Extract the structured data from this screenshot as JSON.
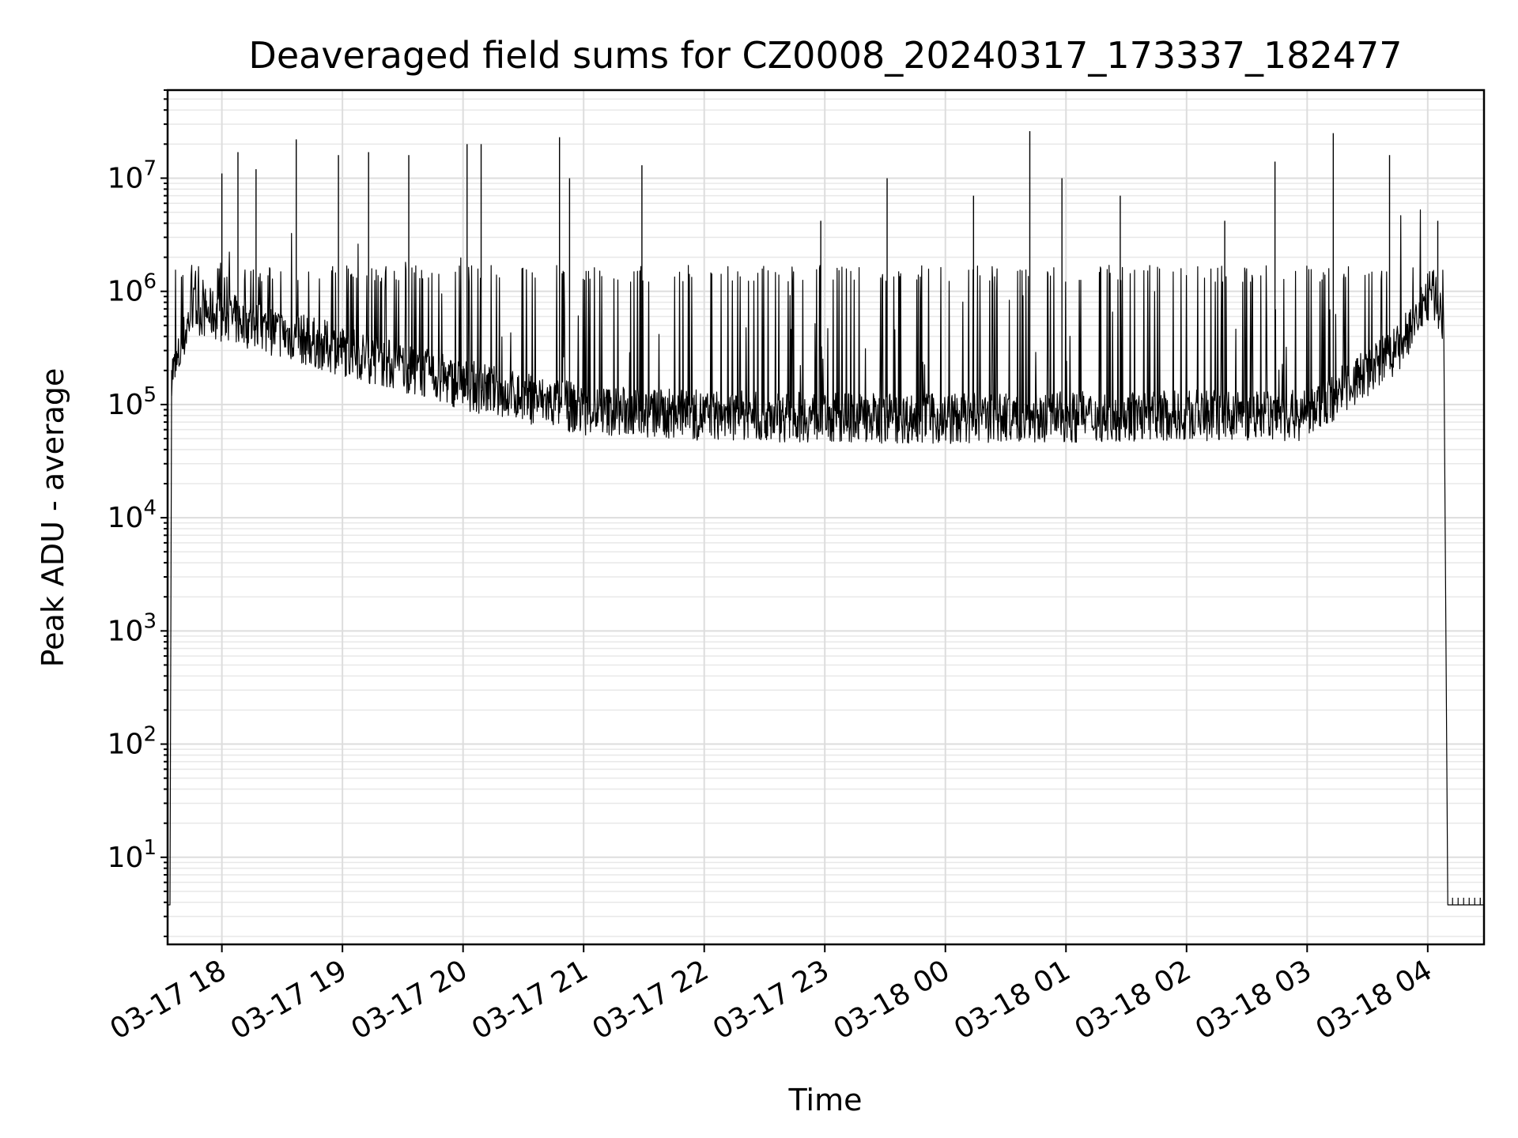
{
  "chart_data": {
    "type": "line",
    "title": "Deaveraged field sums for CZ0008_20240317_173337_182477",
    "xlabel": "Time",
    "ylabel": "Peak ADU - average",
    "yscale": "log",
    "ylim": [
      1.7,
      60000000
    ],
    "xlim": [
      "2024-03-17 17:33",
      "2024-03-18 04:28"
    ],
    "grid": true,
    "line_color": "#000000",
    "x_ticks": [
      "03-17 18",
      "03-17 19",
      "03-17 20",
      "03-17 21",
      "03-17 22",
      "03-17 23",
      "03-18 00",
      "03-18 01",
      "03-18 02",
      "03-18 03",
      "03-18 04"
    ],
    "y_ticks": [
      {
        "base": "10",
        "exp": "1",
        "value": 10
      },
      {
        "base": "10",
        "exp": "2",
        "value": 100
      },
      {
        "base": "10",
        "exp": "3",
        "value": 1000
      },
      {
        "base": "10",
        "exp": "4",
        "value": 10000
      },
      {
        "base": "10",
        "exp": "5",
        "value": 100000
      },
      {
        "base": "10",
        "exp": "6",
        "value": 1000000
      },
      {
        "base": "10",
        "exp": "7",
        "value": 10000000
      }
    ],
    "series": [
      {
        "baseline_profile": [
          {
            "x": "2024-03-17 17:37",
            "y": 200000
          },
          {
            "x": "2024-03-17 17:45",
            "y": 700000
          },
          {
            "x": "2024-03-17 18:00",
            "y": 600000
          },
          {
            "x": "2024-03-17 19:00",
            "y": 300000
          },
          {
            "x": "2024-03-17 20:00",
            "y": 150000
          },
          {
            "x": "2024-03-17 21:00",
            "y": 90000
          },
          {
            "x": "2024-03-17 22:00",
            "y": 80000
          },
          {
            "x": "2024-03-18 00:00",
            "y": 75000
          },
          {
            "x": "2024-03-18 02:00",
            "y": 80000
          },
          {
            "x": "2024-03-18 03:00",
            "y": 80000
          },
          {
            "x": "2024-03-18 03:45",
            "y": 300000
          },
          {
            "x": "2024-03-18 04:02",
            "y": 1000000
          },
          {
            "x": "2024-03-18 04:08",
            "y": 600000
          }
        ],
        "edges": [
          {
            "x": "2024-03-17 17:33",
            "y": 3.8
          },
          {
            "x": "2024-03-17 17:35",
            "y": 200000
          },
          {
            "x": "2024-03-18 04:10",
            "y": 3.8
          },
          {
            "x": "2024-03-18 04:28",
            "y": 3.8
          }
        ],
        "spikes": [
          {
            "x": "2024-03-17 18:00",
            "y": 11000000
          },
          {
            "x": "2024-03-17 18:08",
            "y": 17000000
          },
          {
            "x": "2024-03-17 18:17",
            "y": 12000000
          },
          {
            "x": "2024-03-17 18:37",
            "y": 22000000
          },
          {
            "x": "2024-03-17 18:58",
            "y": 16000000
          },
          {
            "x": "2024-03-17 19:13",
            "y": 17000000
          },
          {
            "x": "2024-03-17 19:33",
            "y": 16000000
          },
          {
            "x": "2024-03-17 20:02",
            "y": 20000000
          },
          {
            "x": "2024-03-17 20:09",
            "y": 20000000
          },
          {
            "x": "2024-03-17 20:48",
            "y": 23000000
          },
          {
            "x": "2024-03-17 20:53",
            "y": 10000000
          },
          {
            "x": "2024-03-17 21:29",
            "y": 13000000
          },
          {
            "x": "2024-03-17 22:58",
            "y": 4200000
          },
          {
            "x": "2024-03-17 23:31",
            "y": 10000000
          },
          {
            "x": "2024-03-18 00:14",
            "y": 7000000
          },
          {
            "x": "2024-03-18 00:42",
            "y": 26000000
          },
          {
            "x": "2024-03-18 00:58",
            "y": 10000000
          },
          {
            "x": "2024-03-18 01:27",
            "y": 7000000
          },
          {
            "x": "2024-03-18 02:19",
            "y": 4200000
          },
          {
            "x": "2024-03-18 02:44",
            "y": 14000000
          },
          {
            "x": "2024-03-18 03:13",
            "y": 25000000
          },
          {
            "x": "2024-03-18 03:41",
            "y": 16000000
          },
          {
            "x": "2024-03-18 04:05",
            "y": 4200000
          }
        ]
      }
    ]
  }
}
